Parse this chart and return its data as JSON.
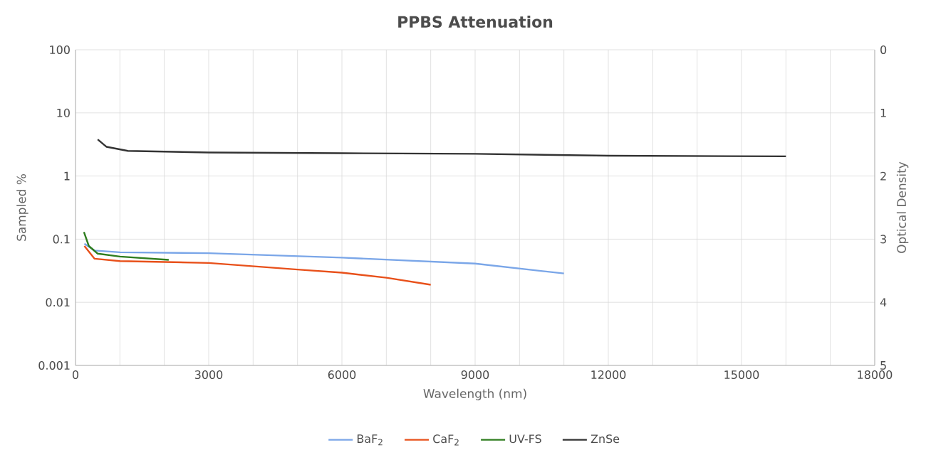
{
  "chart_data": {
    "type": "line",
    "title": "PPBS Attenuation",
    "xlabel": "Wavelength (nm)",
    "ylabel": "Sampled %",
    "y2label": "Optical Density",
    "log": "y",
    "grid": true,
    "legend": "bottom",
    "xlim": [
      0,
      18000
    ],
    "xticks": [
      0,
      {
        "value": 1000,
        "label": null
      },
      {
        "value": 2000,
        "label": null
      },
      3000,
      {
        "value": 4000,
        "label": null
      },
      {
        "value": 5000,
        "label": null
      },
      6000,
      {
        "value": 7000,
        "label": null
      },
      {
        "value": 8000,
        "label": null
      },
      9000,
      {
        "value": 10000,
        "label": null
      },
      {
        "value": 11000,
        "label": null
      },
      12000,
      {
        "value": 13000,
        "label": null
      },
      {
        "value": 14000,
        "label": null
      },
      15000,
      {
        "value": 16000,
        "label": null
      },
      {
        "value": 17000,
        "label": null
      },
      18000
    ],
    "ylim": [
      0.001,
      100
    ],
    "yticks": [
      0.001,
      0.01,
      0.1,
      1,
      10,
      100
    ],
    "y2lim": [
      5,
      0
    ],
    "y2ticks": [
      0,
      1,
      2,
      3,
      4,
      5
    ],
    "series": [
      {
        "name": "BaF$_{2}$",
        "color": "#7aa6e8",
        "x": [
          200,
          430,
          1000,
          3000,
          6000,
          9000,
          11000
        ],
        "values": [
          0.085,
          0.066,
          0.062,
          0.06,
          0.051,
          0.041,
          0.0286
        ]
      },
      {
        "name": "CaF$_{2}$",
        "color": "#e8501a",
        "x": [
          200,
          430,
          1000,
          3000,
          5000,
          6000,
          7000,
          8000
        ],
        "values": [
          0.078,
          0.049,
          0.045,
          0.042,
          0.033,
          0.0295,
          0.0245,
          0.019
        ]
      },
      {
        "name": "UV-FS",
        "color": "#2e7d1e",
        "x": [
          190,
          300,
          500,
          1000,
          2100
        ],
        "values": [
          0.13,
          0.078,
          0.059,
          0.053,
          0.047
        ]
      },
      {
        "name": "ZnSe",
        "color": "#333333",
        "x": [
          500,
          700,
          1180,
          3000,
          6000,
          9000,
          12000,
          16000
        ],
        "values": [
          3.8,
          2.9,
          2.5,
          2.36,
          2.3,
          2.25,
          2.1,
          2.05
        ]
      }
    ]
  }
}
